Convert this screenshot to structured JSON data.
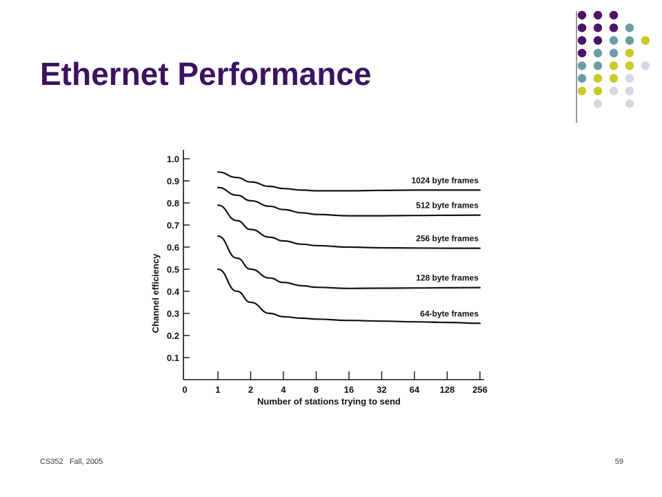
{
  "slide": {
    "title": "Ethernet Performance",
    "footer_course": "CS352",
    "footer_term": "Fall, 2005",
    "page_number": "59"
  },
  "decoration": {
    "colors": {
      "purple": "#4b1466",
      "teal": "#6b9ea3",
      "yellow": "#c9c928",
      "lavender": "#d6d6e8",
      "divider": "#555555"
    },
    "dot_rows": [
      [
        "purple",
        "purple",
        "purple",
        "",
        ""
      ],
      [
        "purple",
        "purple",
        "purple",
        "teal",
        ""
      ],
      [
        "purple",
        "purple",
        "teal",
        "teal",
        "yellow"
      ],
      [
        "purple",
        "teal",
        "teal",
        "yellow",
        ""
      ],
      [
        "teal",
        "teal",
        "yellow",
        "yellow",
        "lavender"
      ],
      [
        "teal",
        "yellow",
        "yellow",
        "lavender",
        ""
      ],
      [
        "yellow",
        "yellow",
        "lavender",
        "lavender",
        ""
      ],
      [
        "",
        "lavender",
        "",
        "lavender",
        ""
      ]
    ]
  },
  "chart_data": {
    "type": "line",
    "xlabel": "Number of stations trying to send",
    "ylabel": "Channel efficiency",
    "x_origin_label": "0",
    "x_ticks": [
      "1",
      "2",
      "4",
      "8",
      "16",
      "32",
      "64",
      "128",
      "256"
    ],
    "y_ticks": [
      "0.1",
      "0.2",
      "0.3",
      "0.4",
      "0.5",
      "0.6",
      "0.7",
      "0.8",
      "0.9",
      "1.0"
    ],
    "ylim": [
      0,
      1.0
    ],
    "x_scale": "log2",
    "grid": false,
    "legend": "labels at right end of each curve",
    "line_color": "#111111",
    "series": [
      {
        "name": "1024 byte frames",
        "x": [
          1,
          1.5,
          2,
          3,
          4,
          6,
          8,
          16,
          32,
          64,
          128,
          256
        ],
        "values": [
          0.94,
          0.915,
          0.895,
          0.875,
          0.865,
          0.858,
          0.855,
          0.855,
          0.857,
          0.858,
          0.858,
          0.858
        ]
      },
      {
        "name": "512 byte frames",
        "x": [
          1,
          1.5,
          2,
          3,
          4,
          6,
          8,
          16,
          32,
          64,
          128,
          256
        ],
        "values": [
          0.87,
          0.835,
          0.81,
          0.785,
          0.77,
          0.755,
          0.748,
          0.742,
          0.742,
          0.743,
          0.744,
          0.745
        ]
      },
      {
        "name": "256 byte frames",
        "x": [
          1,
          1.5,
          2,
          3,
          4,
          6,
          8,
          16,
          32,
          64,
          128,
          256
        ],
        "values": [
          0.79,
          0.72,
          0.68,
          0.645,
          0.628,
          0.613,
          0.607,
          0.6,
          0.597,
          0.596,
          0.595,
          0.595
        ]
      },
      {
        "name": "128 byte frames",
        "x": [
          1,
          1.5,
          2,
          3,
          4,
          6,
          8,
          16,
          32,
          64,
          128,
          256
        ],
        "values": [
          0.65,
          0.55,
          0.5,
          0.46,
          0.44,
          0.425,
          0.418,
          0.413,
          0.414,
          0.415,
          0.416,
          0.417
        ]
      },
      {
        "name": "64-byte frames",
        "x": [
          1,
          1.5,
          2,
          3,
          4,
          6,
          8,
          16,
          32,
          64,
          128,
          256
        ],
        "values": [
          0.5,
          0.4,
          0.35,
          0.3,
          0.285,
          0.278,
          0.274,
          0.268,
          0.265,
          0.262,
          0.259,
          0.255
        ]
      }
    ]
  }
}
